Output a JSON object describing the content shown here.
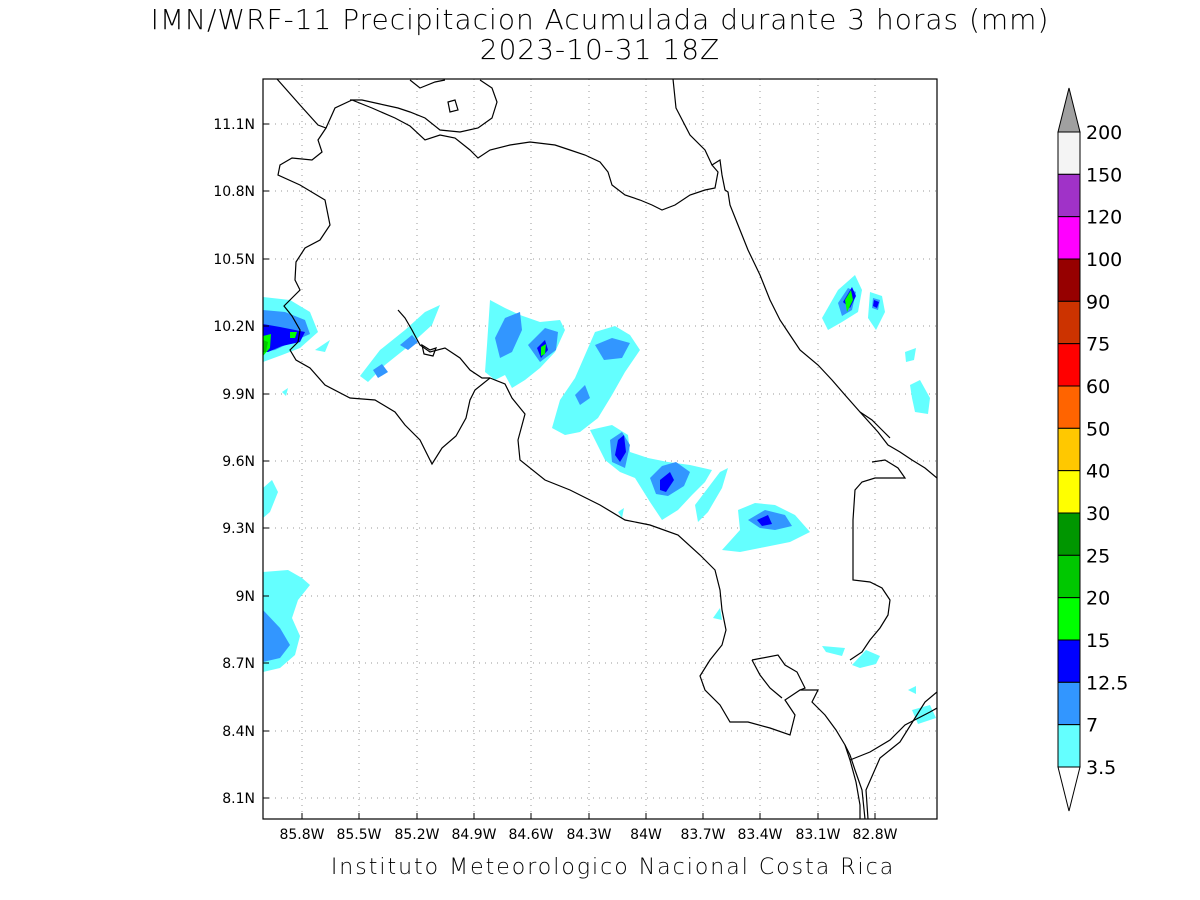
{
  "title": "IMN/WRF-11 Precipitacion Acumulada durante 3 horas (mm)",
  "subtitle": "2023-10-31 18Z",
  "credit": "Instituto Meteorologico Nacional Costa Rica",
  "map": {
    "lon_ticks": [
      "85.8W",
      "85.5W",
      "85.2W",
      "84.9W",
      "84.6W",
      "84.3W",
      "84W",
      "83.7W",
      "83.4W",
      "83.1W",
      "82.8W"
    ],
    "lat_ticks": [
      "11.1N",
      "10.8N",
      "10.5N",
      "10.2N",
      "9.9N",
      "9.6N",
      "9.3N",
      "9N",
      "8.7N",
      "8.4N",
      "8.1N"
    ],
    "grid": true
  },
  "legend": {
    "labels": [
      "200",
      "150",
      "120",
      "100",
      "90",
      "75",
      "60",
      "50",
      "40",
      "30",
      "25",
      "20",
      "15",
      "12.5",
      "7",
      "3.5"
    ],
    "colors": [
      "#f4f4f4",
      "#a032c8",
      "#ff00ff",
      "#960000",
      "#cc3300",
      "#ff0000",
      "#ff6400",
      "#ffc800",
      "#ffff00",
      "#009600",
      "#00c800",
      "#00ff00",
      "#0000ff",
      "#3296ff",
      "#64ffff"
    ],
    "top_arrow_color": "#a0a0a0",
    "bottom_arrow_color": "#ffffff"
  }
}
